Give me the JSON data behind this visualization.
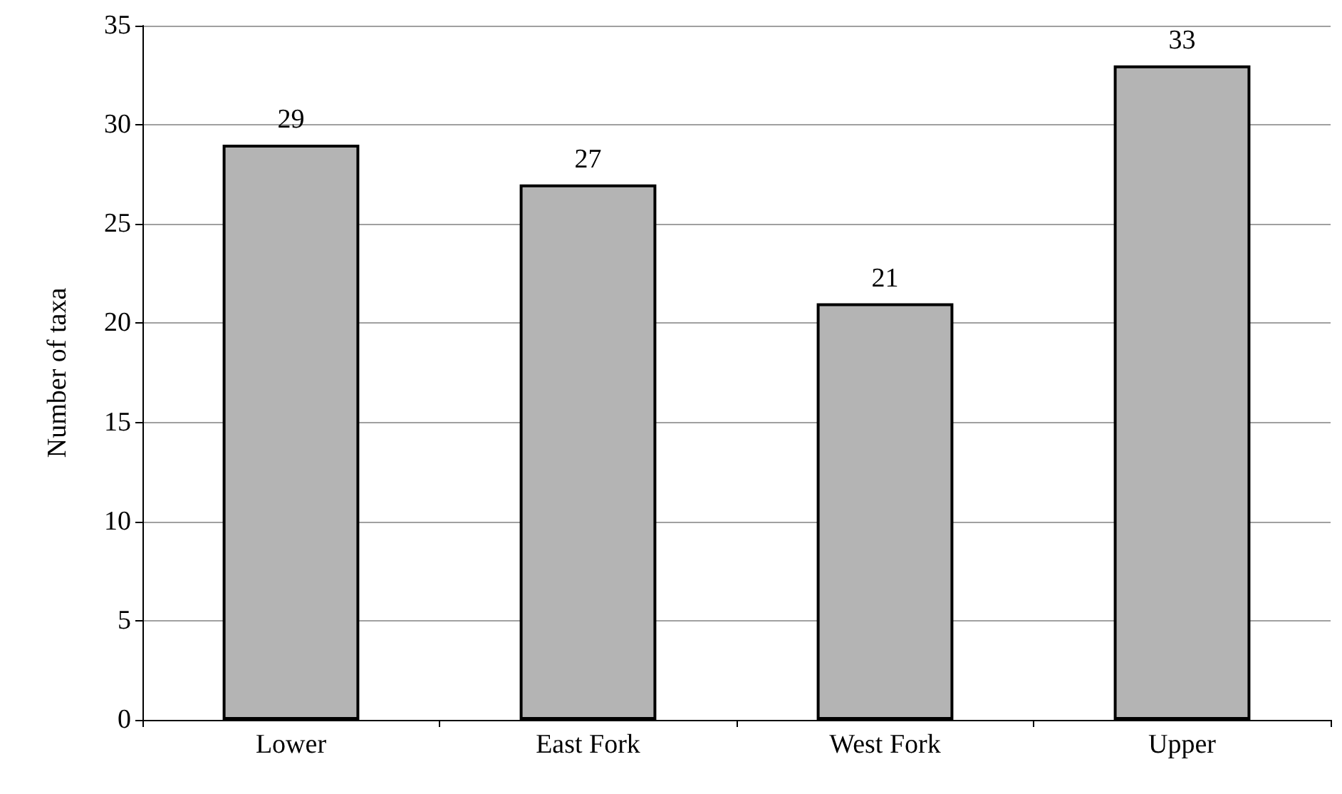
{
  "chart_data": {
    "type": "bar",
    "ylabel": "Number of taxa",
    "categories": [
      "Lower",
      "East Fork",
      "West Fork",
      "Upper"
    ],
    "values": [
      29,
      27,
      21,
      33
    ],
    "color": "#b4b4b4",
    "ylim": [
      0,
      35
    ],
    "yticks": [
      0,
      5,
      10,
      15,
      20,
      25,
      30,
      35
    ],
    "grid": "y",
    "data_labels": true
  }
}
